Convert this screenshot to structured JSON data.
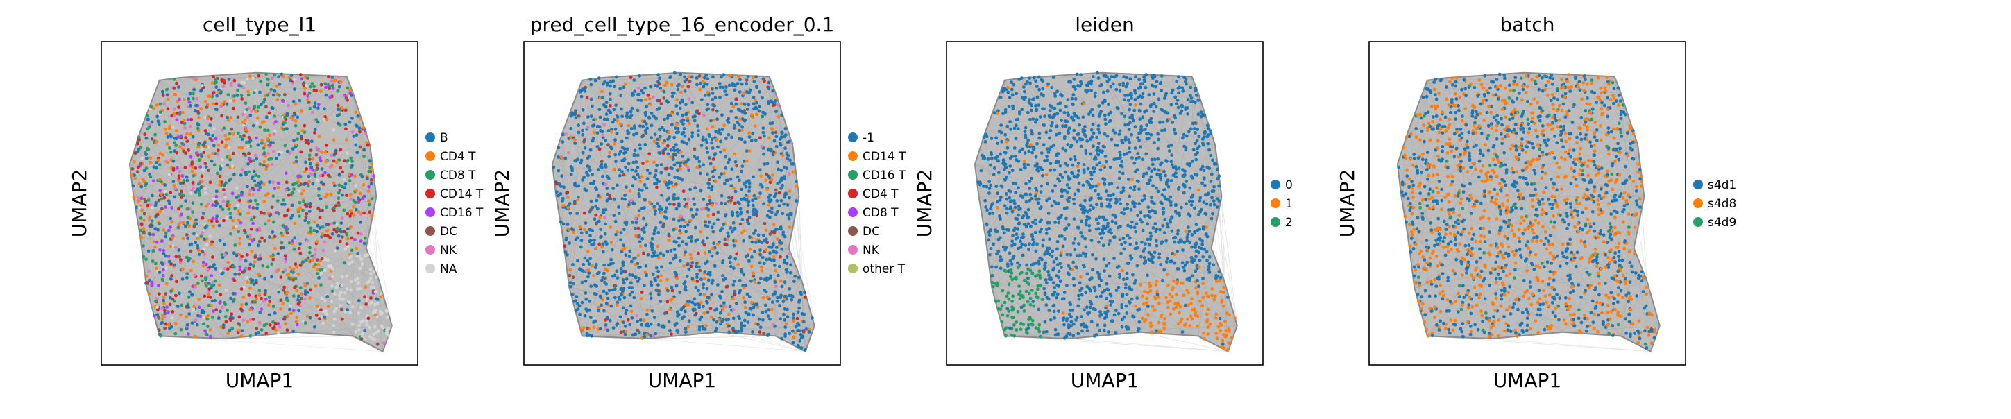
{
  "chart_data": [
    {
      "type": "scatter",
      "title": "cell_type_l1",
      "xlabel": "UMAP1",
      "ylabel": "UMAP2",
      "grid": false,
      "legend_placement": "right",
      "categories": [
        {
          "label": "B",
          "color": "#1f77b4"
        },
        {
          "label": "CD4 T",
          "color": "#ff7f0e"
        },
        {
          "label": "CD8 T",
          "color": "#279e68"
        },
        {
          "label": "CD14 T",
          "color": "#d62728"
        },
        {
          "label": "CD16 T",
          "color": "#aa40fc"
        },
        {
          "label": "DC",
          "color": "#8c564b"
        },
        {
          "label": "NK",
          "color": "#e377c2"
        },
        {
          "label": "NA",
          "color": "#d3d3d3"
        }
      ]
    },
    {
      "type": "scatter",
      "title": "pred_cell_type_16_encoder_0.1",
      "xlabel": "UMAP1",
      "ylabel": "UMAP2",
      "grid": false,
      "legend_placement": "right",
      "categories": [
        {
          "label": "-1",
          "color": "#1f77b4"
        },
        {
          "label": "CD14 T",
          "color": "#ff7f0e"
        },
        {
          "label": "CD16 T",
          "color": "#279e68"
        },
        {
          "label": "CD4 T",
          "color": "#d62728"
        },
        {
          "label": "CD8 T",
          "color": "#aa40fc"
        },
        {
          "label": "DC",
          "color": "#8c564b"
        },
        {
          "label": "NK",
          "color": "#e377c2"
        },
        {
          "label": "other T",
          "color": "#b5bd61"
        }
      ]
    },
    {
      "type": "scatter",
      "title": "leiden",
      "xlabel": "UMAP1",
      "ylabel": "UMAP2",
      "grid": false,
      "legend_placement": "right",
      "categories": [
        {
          "label": "0",
          "color": "#1f77b4"
        },
        {
          "label": "1",
          "color": "#ff7f0e"
        },
        {
          "label": "2",
          "color": "#279e68"
        }
      ]
    },
    {
      "type": "scatter",
      "title": "batch",
      "xlabel": "UMAP1",
      "ylabel": "UMAP2",
      "grid": false,
      "legend_placement": "right",
      "categories": [
        {
          "label": "s4d1",
          "color": "#1f77b4"
        },
        {
          "label": "s4d8",
          "color": "#ff7f0e"
        },
        {
          "label": "s4d9",
          "color": "#279e68"
        }
      ]
    }
  ],
  "colors": {
    "background_edges": "#8c8c8c",
    "frame": "#000000"
  }
}
